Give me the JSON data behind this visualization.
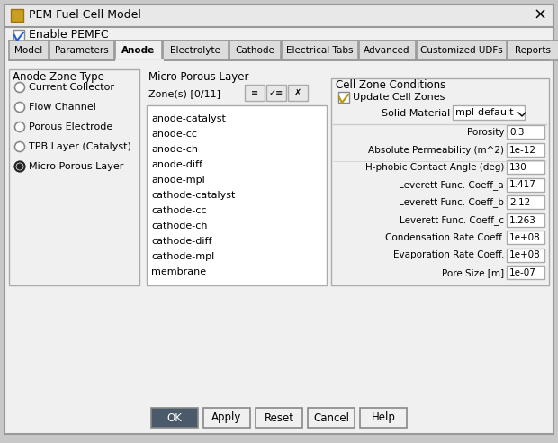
{
  "title": "PEM Fuel Cell Model",
  "bg_color": "#f0f0f0",
  "dialog_bg": "#f0f0f0",
  "title_bar_bg": "#e8e8e8",
  "tab_labels": [
    "Model",
    "Parameters",
    "Anode",
    "Electrolyte",
    "Cathode",
    "Electrical Tabs",
    "Advanced",
    "Customized UDFs",
    "Reports"
  ],
  "active_tab": "Anode",
  "enable_pemfc_text": "Enable PEMFC",
  "anode_zone_type_label": "Anode Zone Type",
  "radio_options": [
    "Current Collector",
    "Flow Channel",
    "Porous Electrode",
    "TPB Layer (Catalyst)",
    "Micro Porous Layer"
  ],
  "selected_radio": 4,
  "micro_porous_label": "Micro Porous Layer",
  "zone_label": "Zone(s) [0/11]",
  "zone_list": [
    "anode-catalyst",
    "anode-cc",
    "anode-ch",
    "anode-diff",
    "anode-mpl",
    "cathode-catalyst",
    "cathode-cc",
    "cathode-ch",
    "cathode-diff",
    "cathode-mpl",
    "membrane"
  ],
  "cell_zone_conditions_label": "Cell Zone Conditions",
  "update_cell_zones_text": "Update Cell Zones",
  "solid_material_label": "Solid Material",
  "solid_material_value": "mpl-default",
  "fields": [
    {
      "label": "Porosity",
      "value": "0.3"
    },
    {
      "label": "Absolute Permeability (m^2)",
      "value": "1e-12"
    },
    {
      "label": "H-phobic Contact Angle (deg)",
      "value": "130"
    },
    {
      "label": "Leverett Func. Coeff_a",
      "value": "1.417"
    },
    {
      "label": "Leverett Func. Coeff_b",
      "value": "2.12"
    },
    {
      "label": "Leverett Func. Coeff_c",
      "value": "1.263"
    },
    {
      "label": "Condensation Rate Coeff.",
      "value": "1e+08"
    },
    {
      "label": "Evaporation Rate Coeff.",
      "value": "1e+08"
    },
    {
      "label": "Pore Size [m]",
      "value": "1e-07"
    }
  ],
  "buttons": [
    "OK",
    "Apply",
    "Reset",
    "Cancel",
    "Help"
  ],
  "ok_btn_bg": "#4a5a6a",
  "ok_btn_fg": "#ffffff"
}
